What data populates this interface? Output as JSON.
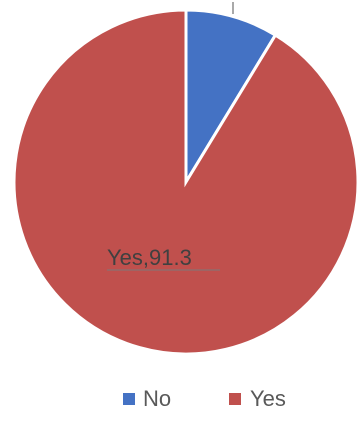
{
  "chart_data": {
    "type": "pie",
    "categories": [
      "No",
      "Yes"
    ],
    "values": [
      8.7,
      91.3
    ],
    "colors": [
      "#4472C4",
      "#C0504D"
    ],
    "data_labels": [
      "",
      "Yes,91.3"
    ],
    "legend": [
      "No",
      "Yes"
    ],
    "legend_position": "bottom",
    "title": ""
  }
}
